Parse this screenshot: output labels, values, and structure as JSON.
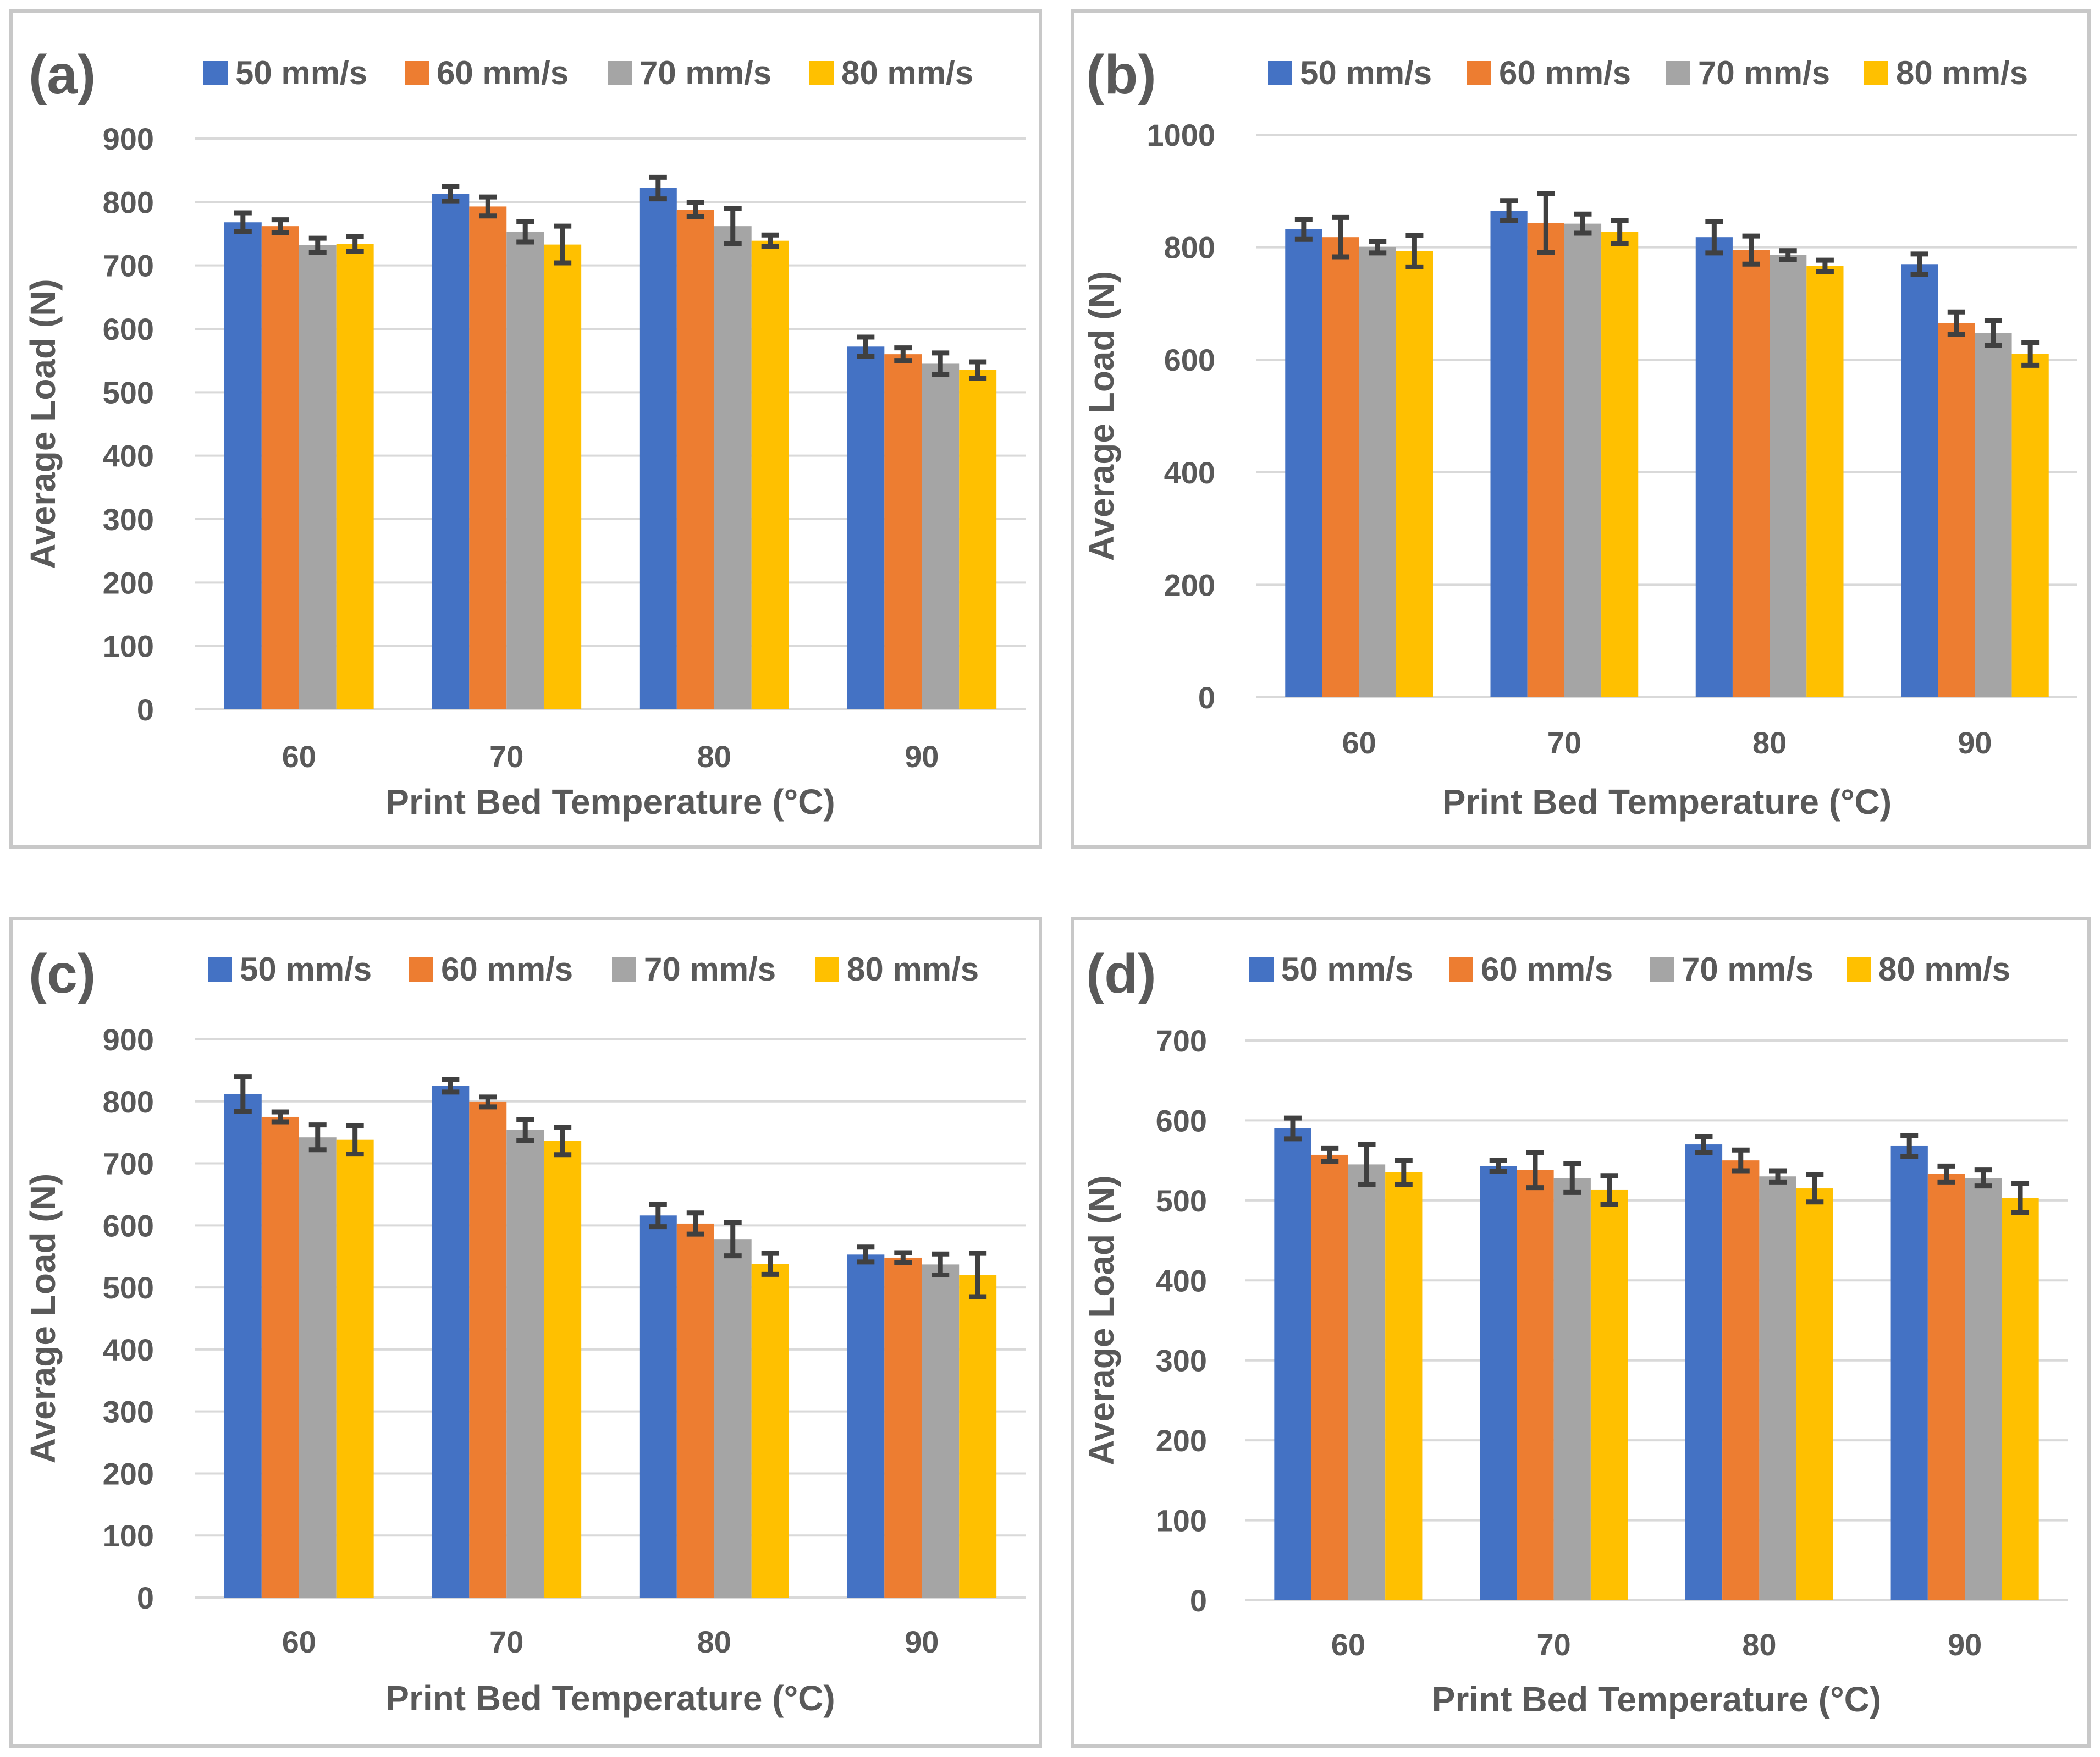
{
  "colors": {
    "series": [
      "#4472C4",
      "#ED7D31",
      "#A5A5A5",
      "#FFC000"
    ],
    "text": "#595959",
    "grid": "#D9D9D9",
    "error_bar": "#404040"
  },
  "chart_data": [
    {
      "type": "bar",
      "panel_label": "(a)",
      "xlabel": "Print Bed Temperature (°C)",
      "ylabel": "Average Load (N)",
      "categories": [
        "60",
        "70",
        "80",
        "90"
      ],
      "ylim": [
        0,
        900
      ],
      "yticks": [
        0,
        100,
        200,
        300,
        400,
        500,
        600,
        700,
        800,
        900
      ],
      "series": [
        {
          "name": "50 mm/s",
          "values": [
            768,
            813,
            822,
            572
          ],
          "errors": [
            15,
            12,
            17,
            15
          ]
        },
        {
          "name": "60 mm/s",
          "values": [
            762,
            793,
            788,
            560
          ],
          "errors": [
            10,
            15,
            11,
            10
          ]
        },
        {
          "name": "70 mm/s",
          "values": [
            732,
            753,
            762,
            545
          ],
          "errors": [
            11,
            16,
            28,
            17
          ]
        },
        {
          "name": "80 mm/s",
          "values": [
            734,
            733,
            739,
            535
          ],
          "errors": [
            12,
            29,
            9,
            13
          ]
        }
      ]
    },
    {
      "type": "bar",
      "panel_label": "(b)",
      "xlabel": "Print Bed Temperature (°C)",
      "ylabel": "Average Load (N)",
      "categories": [
        "60",
        "70",
        "80",
        "90"
      ],
      "ylim": [
        0,
        1000
      ],
      "yticks": [
        0,
        200,
        400,
        600,
        800,
        1000
      ],
      "series": [
        {
          "name": "50 mm/s",
          "values": [
            832,
            865,
            818,
            770
          ],
          "errors": [
            18,
            18,
            28,
            18
          ]
        },
        {
          "name": "60 mm/s",
          "values": [
            818,
            843,
            795,
            665
          ],
          "errors": [
            35,
            52,
            25,
            20
          ]
        },
        {
          "name": "70 mm/s",
          "values": [
            800,
            842,
            786,
            648
          ],
          "errors": [
            10,
            17,
            8,
            22
          ]
        },
        {
          "name": "80 mm/s",
          "values": [
            793,
            827,
            767,
            610
          ],
          "errors": [
            28,
            20,
            10,
            20
          ]
        }
      ]
    },
    {
      "type": "bar",
      "panel_label": "(c)",
      "xlabel": "Print Bed Temperature (°C)",
      "ylabel": "Average Load (N)",
      "categories": [
        "60",
        "70",
        "80",
        "90"
      ],
      "ylim": [
        0,
        900
      ],
      "yticks": [
        0,
        100,
        200,
        300,
        400,
        500,
        600,
        700,
        800,
        900
      ],
      "series": [
        {
          "name": "50 mm/s",
          "values": [
            812,
            825,
            616,
            553
          ],
          "errors": [
            28,
            10,
            18,
            12
          ]
        },
        {
          "name": "60 mm/s",
          "values": [
            775,
            799,
            603,
            548
          ],
          "errors": [
            8,
            8,
            17,
            8
          ]
        },
        {
          "name": "70 mm/s",
          "values": [
            742,
            754,
            578,
            537
          ],
          "errors": [
            20,
            17,
            27,
            17
          ]
        },
        {
          "name": "80 mm/s",
          "values": [
            738,
            736,
            538,
            520
          ],
          "errors": [
            23,
            22,
            17,
            35
          ]
        }
      ]
    },
    {
      "type": "bar",
      "panel_label": "(d)",
      "xlabel": "Print Bed Temperature (°C)",
      "ylabel": "Average Load (N)",
      "categories": [
        "60",
        "70",
        "80",
        "90"
      ],
      "ylim": [
        0,
        700
      ],
      "yticks": [
        0,
        100,
        200,
        300,
        400,
        500,
        600,
        700
      ],
      "series": [
        {
          "name": "50 mm/s",
          "values": [
            590,
            543,
            570,
            568
          ],
          "errors": [
            13,
            7,
            10,
            13
          ]
        },
        {
          "name": "60 mm/s",
          "values": [
            557,
            538,
            550,
            533
          ],
          "errors": [
            8,
            22,
            13,
            10
          ]
        },
        {
          "name": "70 mm/s",
          "values": [
            545,
            528,
            530,
            528
          ],
          "errors": [
            25,
            18,
            7,
            10
          ]
        },
        {
          "name": "80 mm/s",
          "values": [
            535,
            513,
            515,
            503
          ],
          "errors": [
            15,
            18,
            17,
            18
          ]
        }
      ]
    }
  ]
}
